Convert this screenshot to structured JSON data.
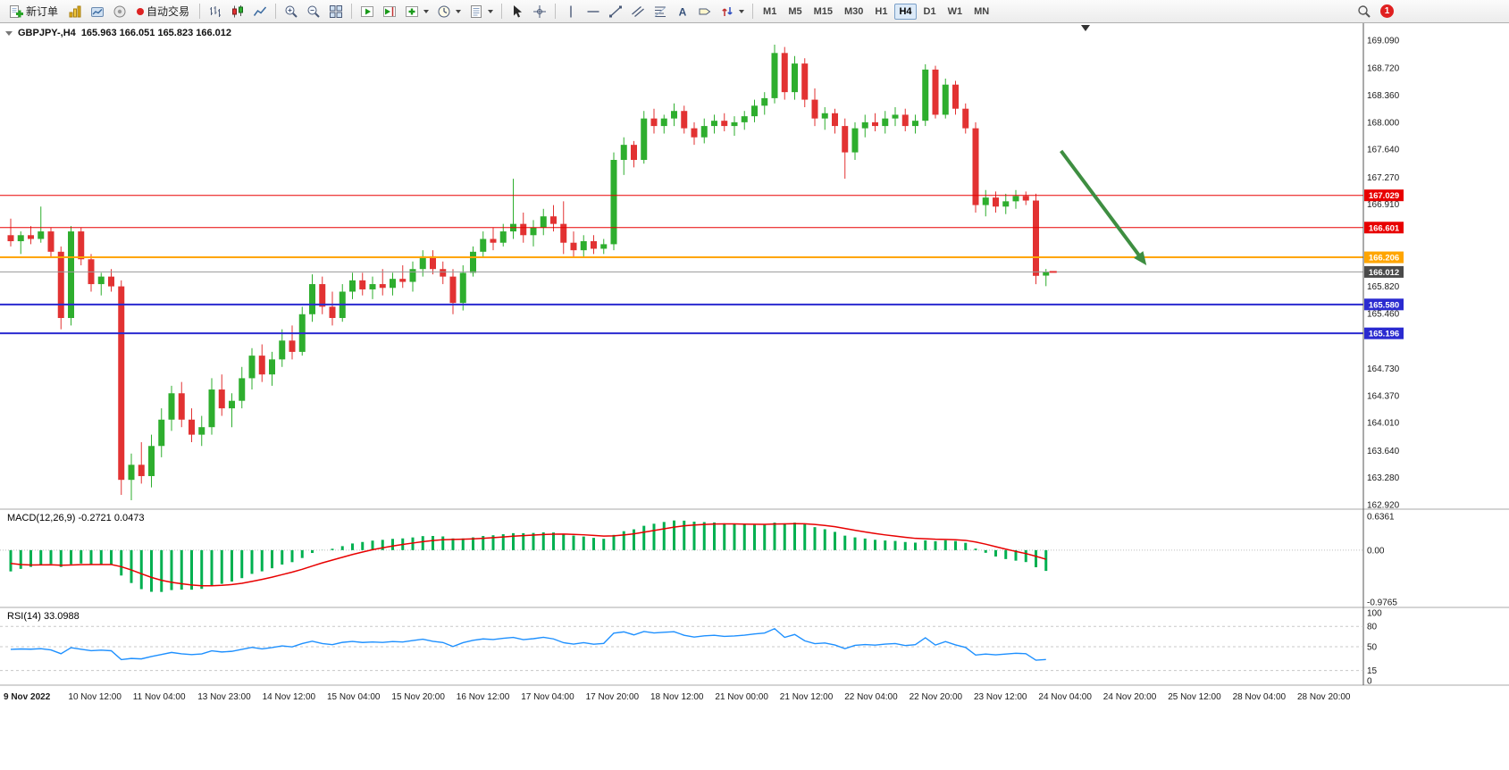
{
  "toolbar": {
    "new_order_label": "新订单",
    "auto_trading_label": "自动交易",
    "timeframes": [
      "M1",
      "M5",
      "M15",
      "M30",
      "H1",
      "H4",
      "D1",
      "W1",
      "MN"
    ],
    "active_timeframe": "H4",
    "notification_count": "1"
  },
  "chart_data": {
    "type": "candlestick",
    "symbol": "GBPJPY-",
    "timeframe": "H4",
    "title": "GBPJPY-,H4",
    "ohlc_text": "165.963 166.051 165.823 166.012",
    "ylim": [
      162.92,
      169.09
    ],
    "y_ticks": [
      "169.090",
      "168.720",
      "168.360",
      "168.000",
      "167.640",
      "167.270",
      "166.910",
      "166.550",
      "166.180",
      "165.820",
      "165.460",
      "165.090",
      "164.730",
      "164.370",
      "164.010",
      "163.640",
      "163.280",
      "162.920"
    ],
    "x_labels": [
      "9 Nov 2022",
      "10 Nov 12:00",
      "11 Nov 04:00",
      "13 Nov 23:00",
      "14 Nov 12:00",
      "15 Nov 04:00",
      "15 Nov 20:00",
      "16 Nov 12:00",
      "17 Nov 04:00",
      "17 Nov 20:00",
      "18 Nov 12:00",
      "21 Nov 00:00",
      "21 Nov 12:00",
      "22 Nov 04:00",
      "22 Nov 20:00",
      "23 Nov 12:00",
      "24 Nov 04:00",
      "24 Nov 20:00",
      "25 Nov 12:00",
      "28 Nov 04:00",
      "28 Nov 20:00"
    ],
    "colors": {
      "up": "#2eae2e",
      "down": "#e23232",
      "macd_histogram": "#00b050",
      "macd_signal": "#e80000",
      "rsi_line": "#1e90ff"
    },
    "horizontal_lines": [
      {
        "price": 167.029,
        "label": "167.029",
        "color": "#e80000",
        "width": 1
      },
      {
        "price": 166.601,
        "label": "166.601",
        "color": "#e80000",
        "width": 1
      },
      {
        "price": 166.206,
        "label": "166.206",
        "color": "#ffa500",
        "width": 2
      },
      {
        "price": 165.58,
        "label": "165.580",
        "color": "#2a2ad0",
        "width": 2
      },
      {
        "price": 165.196,
        "label": "165.196",
        "color": "#2a2ad0",
        "width": 2
      }
    ],
    "current_price": {
      "price": 166.012,
      "label": "166.012",
      "line_color": "#9a9a9a",
      "tag_color": "#4a4a4a"
    },
    "arrow_annotation": {
      "color": "#3e8e41",
      "width": 4,
      "from_bar": 104.5,
      "from_price": 167.62,
      "to_bar": 113,
      "to_price": 166.1
    },
    "macd": {
      "label": "MACD(12,26,9)",
      "display_values": "-0.2721 0.0473",
      "fast": 12,
      "slow": 26,
      "signal": 9,
      "scale_ticks": [
        "0.6361",
        "0.00",
        "-0.9765"
      ]
    },
    "rsi": {
      "label": "RSI(14)",
      "display_value": "33.0988",
      "period": 14,
      "levels": [
        80,
        50,
        15
      ],
      "scale_ticks": [
        "100",
        "80",
        "50",
        "15",
        "0"
      ]
    },
    "candles": [
      [
        166.5,
        166.72,
        166.35,
        166.42
      ],
      [
        166.42,
        166.55,
        166.25,
        166.5
      ],
      [
        166.5,
        166.62,
        166.38,
        166.45
      ],
      [
        166.45,
        166.88,
        166.4,
        166.55
      ],
      [
        166.55,
        166.6,
        166.2,
        166.28
      ],
      [
        166.28,
        166.35,
        165.25,
        165.4
      ],
      [
        165.4,
        166.62,
        165.3,
        166.55
      ],
      [
        166.55,
        166.6,
        166.1,
        166.18
      ],
      [
        166.18,
        166.25,
        165.75,
        165.85
      ],
      [
        165.85,
        166.0,
        165.7,
        165.95
      ],
      [
        165.95,
        166.05,
        165.75,
        165.82
      ],
      [
        165.82,
        165.9,
        163.05,
        163.25
      ],
      [
        163.25,
        163.6,
        162.98,
        163.45
      ],
      [
        163.45,
        163.75,
        163.2,
        163.3
      ],
      [
        163.3,
        163.85,
        163.15,
        163.7
      ],
      [
        163.7,
        164.2,
        163.55,
        164.05
      ],
      [
        164.05,
        164.5,
        163.9,
        164.4
      ],
      [
        164.4,
        164.55,
        163.95,
        164.05
      ],
      [
        164.05,
        164.2,
        163.75,
        163.85
      ],
      [
        163.85,
        164.1,
        163.7,
        163.95
      ],
      [
        163.95,
        164.6,
        163.85,
        164.45
      ],
      [
        164.45,
        164.65,
        164.1,
        164.2
      ],
      [
        164.2,
        164.4,
        163.95,
        164.3
      ],
      [
        164.3,
        164.75,
        164.2,
        164.6
      ],
      [
        164.6,
        165.0,
        164.45,
        164.9
      ],
      [
        164.9,
        165.05,
        164.55,
        164.65
      ],
      [
        164.65,
        164.95,
        164.5,
        164.85
      ],
      [
        164.85,
        165.25,
        164.75,
        165.1
      ],
      [
        165.1,
        165.3,
        164.85,
        164.95
      ],
      [
        164.95,
        165.55,
        164.9,
        165.45
      ],
      [
        165.45,
        165.98,
        165.35,
        165.85
      ],
      [
        165.85,
        165.95,
        165.45,
        165.55
      ],
      [
        165.55,
        165.75,
        165.3,
        165.4
      ],
      [
        165.4,
        165.85,
        165.35,
        165.75
      ],
      [
        165.75,
        166.0,
        165.65,
        165.9
      ],
      [
        165.9,
        166.0,
        165.7,
        165.78
      ],
      [
        165.78,
        165.95,
        165.65,
        165.85
      ],
      [
        165.85,
        166.05,
        165.7,
        165.8
      ],
      [
        165.8,
        166.0,
        165.7,
        165.92
      ],
      [
        165.92,
        166.1,
        165.8,
        165.88
      ],
      [
        165.88,
        166.15,
        165.75,
        166.05
      ],
      [
        166.05,
        166.3,
        165.95,
        166.22
      ],
      [
        166.22,
        166.3,
        165.98,
        166.05
      ],
      [
        166.05,
        166.15,
        165.85,
        165.95
      ],
      [
        165.95,
        166.05,
        165.45,
        165.6
      ],
      [
        165.6,
        166.1,
        165.5,
        166.0
      ],
      [
        166.0,
        166.35,
        165.95,
        166.28
      ],
      [
        166.28,
        166.55,
        166.2,
        166.45
      ],
      [
        166.45,
        166.6,
        166.3,
        166.4
      ],
      [
        166.4,
        166.65,
        166.35,
        166.55
      ],
      [
        166.55,
        167.25,
        166.45,
        166.65
      ],
      [
        166.65,
        166.8,
        166.4,
        166.5
      ],
      [
        166.5,
        166.7,
        166.35,
        166.6
      ],
      [
        166.6,
        166.85,
        166.5,
        166.75
      ],
      [
        166.75,
        166.9,
        166.55,
        166.65
      ],
      [
        166.65,
        166.95,
        166.25,
        166.4
      ],
      [
        166.4,
        166.55,
        166.2,
        166.3
      ],
      [
        166.3,
        166.5,
        166.2,
        166.42
      ],
      [
        166.42,
        166.5,
        166.25,
        166.32
      ],
      [
        166.32,
        166.45,
        166.25,
        166.38
      ],
      [
        166.38,
        167.6,
        166.3,
        167.5
      ],
      [
        167.5,
        167.8,
        167.3,
        167.7
      ],
      [
        167.7,
        167.75,
        167.4,
        167.5
      ],
      [
        167.5,
        168.15,
        167.45,
        168.05
      ],
      [
        168.05,
        168.18,
        167.85,
        167.95
      ],
      [
        167.95,
        168.1,
        167.85,
        168.05
      ],
      [
        168.05,
        168.25,
        167.95,
        168.15
      ],
      [
        168.15,
        168.22,
        167.85,
        167.92
      ],
      [
        167.92,
        168.0,
        167.7,
        167.8
      ],
      [
        167.8,
        168.05,
        167.72,
        167.95
      ],
      [
        167.95,
        168.1,
        167.85,
        168.02
      ],
      [
        168.02,
        168.12,
        167.88,
        167.95
      ],
      [
        167.95,
        168.08,
        167.82,
        168.0
      ],
      [
        168.0,
        168.15,
        167.9,
        168.08
      ],
      [
        168.08,
        168.3,
        168.0,
        168.22
      ],
      [
        168.22,
        168.4,
        168.1,
        168.32
      ],
      [
        168.32,
        169.03,
        168.25,
        168.92
      ],
      [
        168.92,
        169.0,
        168.3,
        168.4
      ],
      [
        168.4,
        168.88,
        168.3,
        168.78
      ],
      [
        168.78,
        168.85,
        168.2,
        168.3
      ],
      [
        168.3,
        168.45,
        167.95,
        168.05
      ],
      [
        168.05,
        168.2,
        167.9,
        168.12
      ],
      [
        168.12,
        168.18,
        167.85,
        167.95
      ],
      [
        167.95,
        168.05,
        167.25,
        167.6
      ],
      [
        167.6,
        168.0,
        167.5,
        167.92
      ],
      [
        167.92,
        168.1,
        167.8,
        168.0
      ],
      [
        168.0,
        168.12,
        167.88,
        167.95
      ],
      [
        167.95,
        168.15,
        167.85,
        168.05
      ],
      [
        168.05,
        168.2,
        167.95,
        168.1
      ],
      [
        168.1,
        168.18,
        167.88,
        167.95
      ],
      [
        167.95,
        168.1,
        167.85,
        168.02
      ],
      [
        168.02,
        168.77,
        167.95,
        168.7
      ],
      [
        168.7,
        168.75,
        168.05,
        168.1
      ],
      [
        168.1,
        168.58,
        168.05,
        168.5
      ],
      [
        168.5,
        168.55,
        168.1,
        168.18
      ],
      [
        168.18,
        168.25,
        167.85,
        167.92
      ],
      [
        167.92,
        168.0,
        166.8,
        166.9
      ],
      [
        166.9,
        167.1,
        166.75,
        167.0
      ],
      [
        167.0,
        167.08,
        166.8,
        166.88
      ],
      [
        166.88,
        167.05,
        166.78,
        166.95
      ],
      [
        166.95,
        167.1,
        166.85,
        167.02
      ],
      [
        167.02,
        167.08,
        166.9,
        166.96
      ],
      [
        166.96,
        167.05,
        165.85,
        165.96
      ],
      [
        165.963,
        166.051,
        165.823,
        166.012
      ]
    ]
  }
}
